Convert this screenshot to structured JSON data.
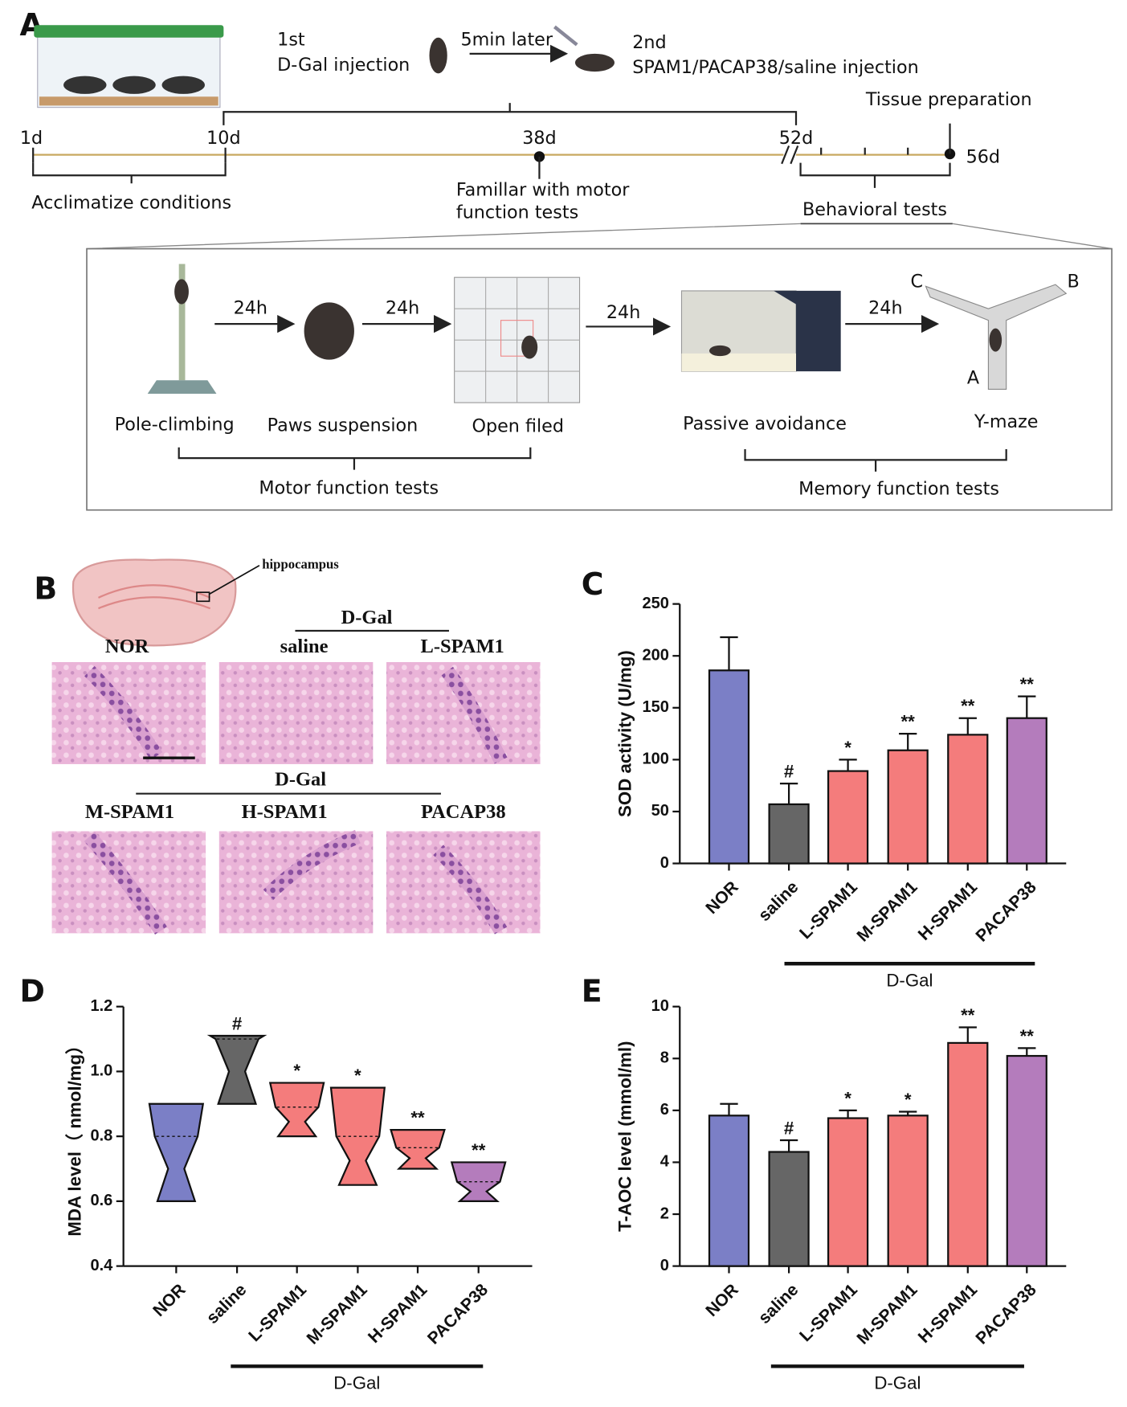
{
  "panel_a": {
    "label": "A",
    "first": "1st",
    "first_injection": "D-Gal injection",
    "delay": "5min later",
    "second": "2nd",
    "second_injection": "SPAM1/PACAP38/saline injection",
    "tissue": "Tissue preparation",
    "days": [
      "1d",
      "10d",
      "38d",
      "52d",
      "56d"
    ],
    "acclimatize": "Acclimatize conditions",
    "familiar": [
      "Famillar with motor",
      "function tests"
    ],
    "behavioral": "Behavioral tests",
    "intervals": [
      "24h",
      "24h",
      "24h",
      "24h"
    ],
    "tests": [
      "Pole-climbing",
      "Paws suspension",
      "Open filed",
      "Passive avoidance",
      "Y-maze"
    ],
    "arms": [
      "C",
      "B",
      "A"
    ],
    "motor": "Motor function tests",
    "memory": "Memory function tests"
  },
  "panel_b": {
    "label": "B",
    "region": "hippocampus",
    "group_labels": [
      "D-Gal",
      "D-Gal"
    ],
    "images": [
      "NOR",
      "saline",
      "L-SPAM1",
      "M-SPAM1",
      "H-SPAM1",
      "PACAP38"
    ]
  },
  "chart_data": [
    {
      "type": "bar",
      "panel": "C",
      "ylabel": "SOD activity (U/mg)",
      "categories": [
        "NOR",
        "saline",
        "L-SPAM1",
        "M-SPAM1",
        "H-SPAM1",
        "PACAP38"
      ],
      "values": [
        186,
        57,
        89,
        109,
        124,
        140
      ],
      "errors": [
        32,
        20,
        11,
        16,
        16,
        21
      ],
      "annotations": [
        null,
        "#",
        "*",
        "**",
        "**",
        "**"
      ],
      "colors": [
        "#7b7fc6",
        "#666666",
        "#f47c7c",
        "#f47c7c",
        "#f47c7c",
        "#b47cbc"
      ],
      "ylim": [
        0,
        250
      ],
      "yticks": [
        0,
        50,
        100,
        150,
        200,
        250
      ],
      "group_label": "D-Gal"
    },
    {
      "type": "violin",
      "panel": "D",
      "ylabel": "MDA level（ nmol/mg）",
      "categories": [
        "NOR",
        "saline",
        "L-SPAM1",
        "M-SPAM1",
        "H-SPAM1",
        "PACAP38"
      ],
      "min": [
        0.6,
        0.9,
        0.8,
        0.65,
        0.7,
        0.6
      ],
      "max": [
        0.9,
        1.11,
        0.965,
        0.95,
        0.82,
        0.72
      ],
      "median": [
        0.8,
        1.1,
        0.89,
        0.8,
        0.765,
        0.66
      ],
      "annotations": [
        null,
        "#",
        "*",
        "*",
        "**",
        "**"
      ],
      "colors": [
        "#7b7fc6",
        "#666666",
        "#f47c7c",
        "#f47c7c",
        "#f47c7c",
        "#b47cbc"
      ],
      "ylim": [
        0.4,
        1.2
      ],
      "yticks": [
        0.4,
        0.6,
        0.8,
        {
          "value": 1,
          "label": "1.0"
        },
        1.2
      ],
      "group_label": "D-Gal"
    },
    {
      "type": "bar",
      "panel": "E",
      "ylabel": "T-AOC level (mmol/ml)",
      "categories": [
        "NOR",
        "saline",
        "L-SPAM1",
        "M-SPAM1",
        "H-SPAM1",
        "PACAP38"
      ],
      "values": [
        5.8,
        4.4,
        5.7,
        5.8,
        8.6,
        8.1
      ],
      "errors": [
        0.45,
        0.45,
        0.3,
        0.15,
        0.6,
        0.3
      ],
      "annotations": [
        null,
        "#",
        "*",
        "*",
        "**",
        "**"
      ],
      "colors": [
        "#7b7fc6",
        "#666666",
        "#f47c7c",
        "#f47c7c",
        "#f47c7c",
        "#b47cbc"
      ],
      "ylim": [
        0,
        10
      ],
      "yticks": [
        0,
        2,
        4,
        6,
        8,
        10
      ],
      "group_label": "D-Gal"
    }
  ]
}
